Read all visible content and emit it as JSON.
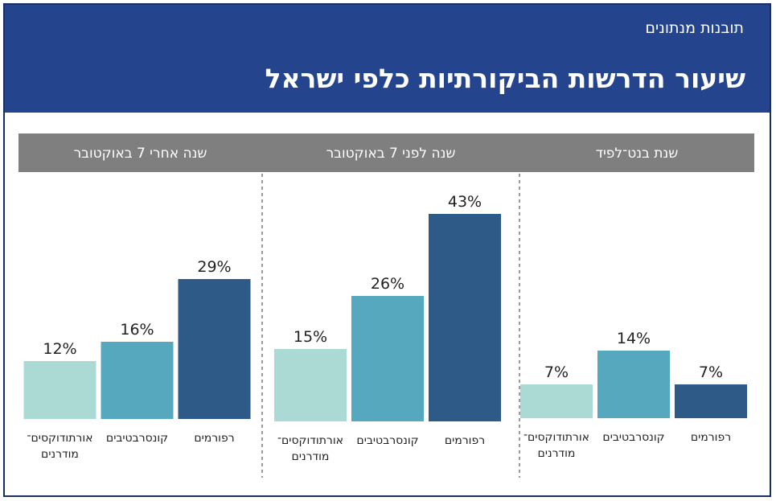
{
  "header": {
    "kicker": "תובנות מנתונים",
    "title": "שיעור הדרשות הביקורתיות כלפי ישראל"
  },
  "colors": {
    "header_bg": "#24458e",
    "panel_band": "#7f7f7f",
    "series": {
      "אורתודוקסים־מודרנים": "#abdad5",
      "קונסרבטיבים": "#55a8bd",
      "רפורמים": "#2e5a87"
    }
  },
  "chart_data": {
    "type": "bar",
    "unit": "%",
    "categories": [
      "רפורמים",
      "קונסרבטיבים",
      "אורתודוקסים־מודרנים"
    ],
    "category_display": [
      [
        "רפורמים"
      ],
      [
        "קונסרבטיבים"
      ],
      [
        "אורתודוקסים־",
        "מודרנים"
      ]
    ],
    "panels": [
      {
        "title": "שנת בנט־לפיד",
        "values": [
          7,
          14,
          7
        ]
      },
      {
        "title": "שנה לפני 7 באוקטובר",
        "values": [
          43,
          26,
          15
        ]
      },
      {
        "title": "שנה אחרי 7 באוקטובר",
        "values": [
          29,
          16,
          12
        ]
      }
    ]
  }
}
